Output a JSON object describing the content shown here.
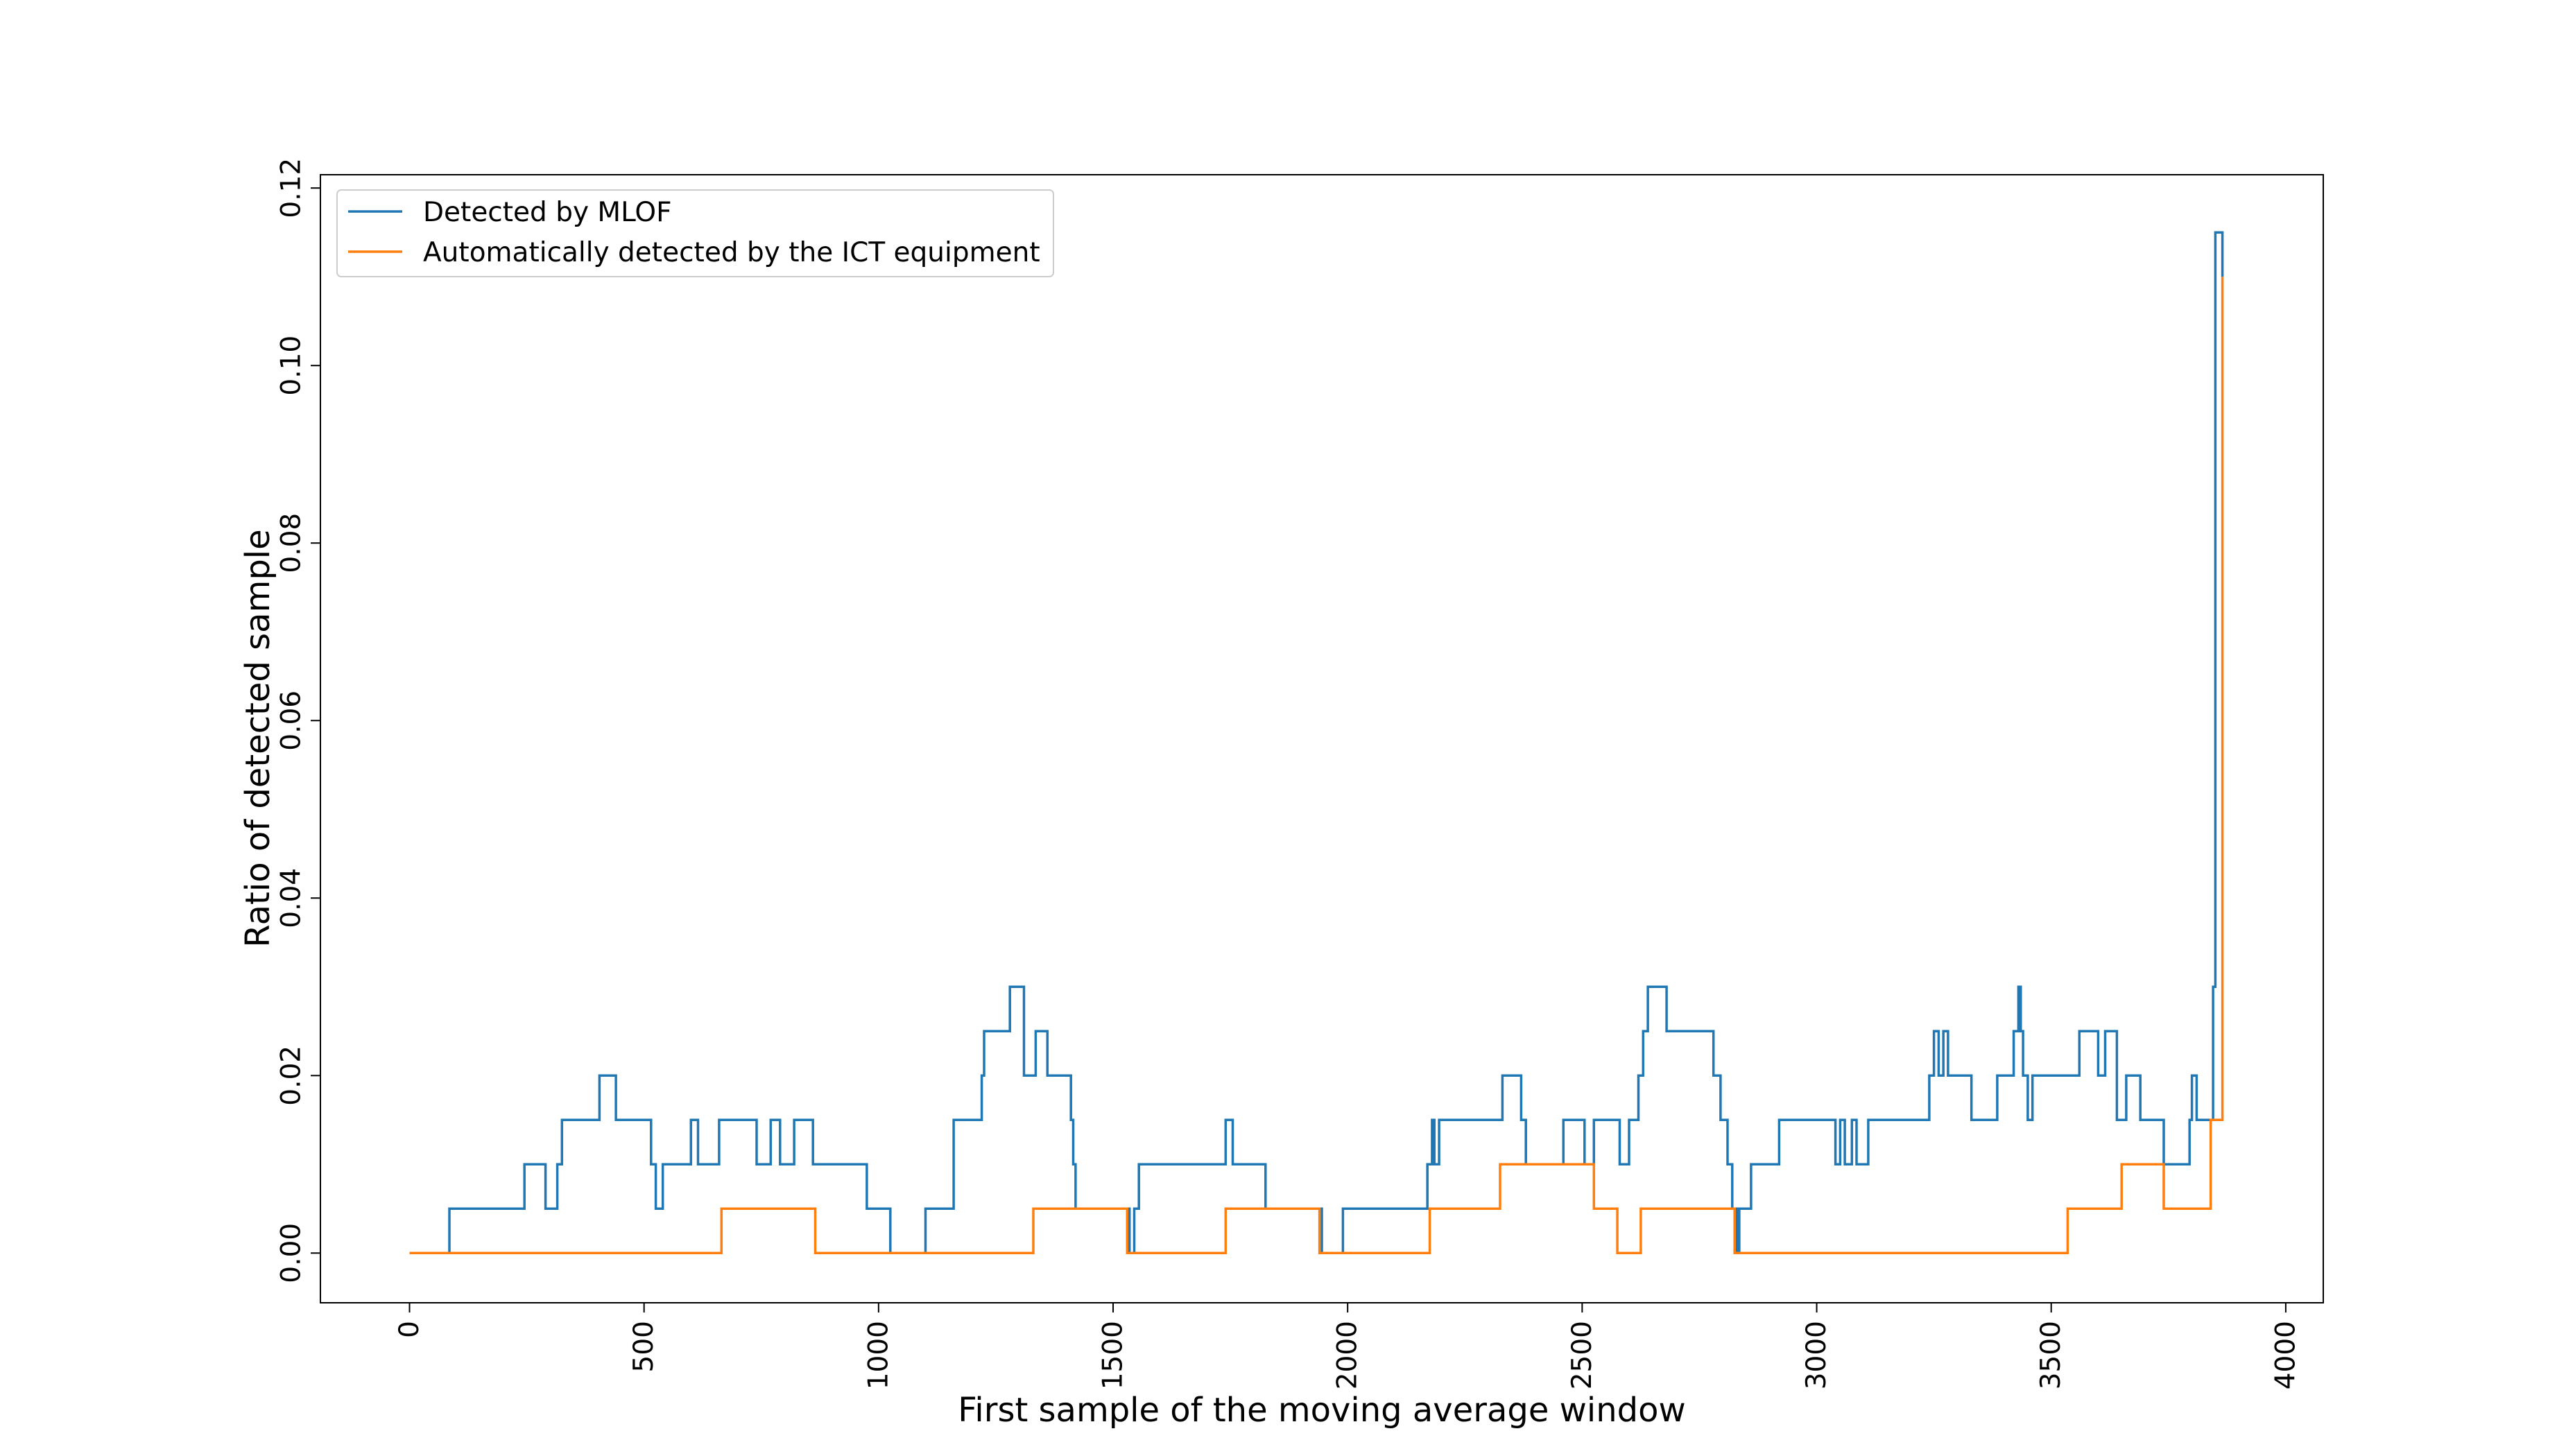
{
  "chart_data": {
    "type": "line",
    "title": "",
    "xlabel": "First sample of the moving average window",
    "ylabel": "Ratio of detected sample",
    "xlim": [
      -190,
      4080
    ],
    "ylim": [
      -0.0056,
      0.1215
    ],
    "x_ticks": [
      0,
      500,
      1000,
      1500,
      2000,
      2500,
      3000,
      3500,
      4000
    ],
    "x_tick_labels": [
      "0",
      "500",
      "1000",
      "1500",
      "2000",
      "2500",
      "3000",
      "3500",
      "4000"
    ],
    "y_ticks": [
      0.0,
      0.02,
      0.04,
      0.06,
      0.08,
      0.1,
      0.12
    ],
    "y_tick_labels": [
      "0.00",
      "0.02",
      "0.04",
      "0.06",
      "0.08",
      "0.10",
      "0.12"
    ],
    "grid": false,
    "legend_position": "top-left",
    "series": [
      {
        "name": "Detected by MLOF",
        "color": "#1f77b4",
        "step": true,
        "x": [
          0,
          85,
          245,
          290,
          315,
          325,
          405,
          440,
          515,
          525,
          540,
          580,
          600,
          615,
          660,
          740,
          770,
          790,
          820,
          860,
          975,
          1025,
          1095,
          1100,
          1160,
          1220,
          1225,
          1280,
          1310,
          1335,
          1360,
          1410,
          1415,
          1420,
          1535,
          1545,
          1555,
          1740,
          1755,
          1825,
          1945,
          1990,
          2170,
          2180,
          2185,
          2195,
          2330,
          2370,
          2380,
          2460,
          2505,
          2525,
          2580,
          2600,
          2615,
          2620,
          2630,
          2640,
          2645,
          2660,
          2680,
          2695,
          2780,
          2795,
          2810,
          2820,
          2830,
          2835,
          2850,
          2860,
          2870,
          2920,
          3040,
          3050,
          3060,
          3075,
          3085,
          3110,
          3240,
          3250,
          3260,
          3270,
          3280,
          3295,
          3330,
          3335,
          3385,
          3420,
          3430,
          3435,
          3440,
          3450,
          3460,
          3470,
          3510,
          3560,
          3600,
          3615,
          3640,
          3660,
          3690,
          3740,
          3795,
          3800,
          3810,
          3840,
          3845,
          3850,
          3865
        ],
        "values": [
          0,
          0.005,
          0.01,
          0.005,
          0.01,
          0.015,
          0.02,
          0.015,
          0.01,
          0.005,
          0.01,
          0.01,
          0.015,
          0.01,
          0.015,
          0.01,
          0.015,
          0.01,
          0.015,
          0.01,
          0.005,
          0,
          0,
          0.005,
          0.015,
          0.02,
          0.025,
          0.03,
          0.02,
          0.025,
          0.02,
          0.015,
          0.01,
          0.005,
          0,
          0.005,
          0.01,
          0.015,
          0.01,
          0.005,
          0,
          0.005,
          0.01,
          0.015,
          0.01,
          0.015,
          0.02,
          0.015,
          0.01,
          0.015,
          0.01,
          0.015,
          0.01,
          0.015,
          0.015,
          0.02,
          0.025,
          0.03,
          0.03,
          0.03,
          0.025,
          0.025,
          0.02,
          0.015,
          0.01,
          0.005,
          0,
          0.005,
          0.005,
          0.01,
          0.01,
          0.015,
          0.01,
          0.015,
          0.01,
          0.015,
          0.01,
          0.015,
          0.02,
          0.025,
          0.02,
          0.025,
          0.02,
          0.02,
          0.015,
          0.015,
          0.02,
          0.025,
          0.03,
          0.025,
          0.02,
          0.015,
          0.02,
          0.02,
          0.02,
          0.025,
          0.02,
          0.025,
          0.015,
          0.02,
          0.015,
          0.01,
          0.015,
          0.02,
          0.015,
          0.015,
          0.03,
          0.115,
          0.11
        ]
      },
      {
        "name": "Automatically detected by the ICT equipment",
        "color": "#ff7f0e",
        "step": true,
        "x": [
          0,
          665,
          865,
          1330,
          1530,
          1740,
          1940,
          2175,
          2325,
          2525,
          2575,
          2625,
          2825,
          3535,
          3650,
          3740,
          3840,
          3865
        ],
        "values": [
          0,
          0.005,
          0,
          0.005,
          0,
          0.005,
          0,
          0.005,
          0.01,
          0.005,
          0,
          0.005,
          0,
          0.005,
          0.01,
          0.005,
          0.015,
          0.11
        ]
      }
    ]
  }
}
